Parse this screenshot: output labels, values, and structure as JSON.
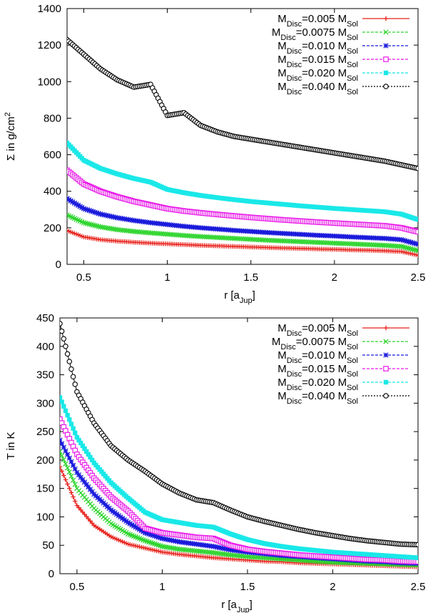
{
  "chart_data": [
    {
      "type": "line",
      "xlabel": "r [a",
      "xlabel_sub": "Jup",
      "xlabel_end": "]",
      "ylabel": "Σ in g/cm",
      "ylabel_sup": "2",
      "xlim": [
        0.4,
        2.5
      ],
      "ylim": [
        0,
        1400
      ],
      "x_ticks": [
        0.5,
        1,
        1.5,
        2,
        2.5
      ],
      "x_tick_labels": [
        "0.5",
        "1",
        "1.5",
        "2",
        "2.5"
      ],
      "y_ticks": [
        0,
        200,
        400,
        600,
        800,
        1000,
        1200,
        1400
      ],
      "y_tick_labels": [
        "0",
        "200",
        "400",
        "600",
        "800",
        "1000",
        "1200",
        "1400"
      ],
      "grid": false,
      "legend_position": "top-right",
      "x": [
        0.4,
        0.5,
        0.6,
        0.7,
        0.8,
        0.9,
        1.0,
        1.1,
        1.2,
        1.3,
        1.4,
        1.5,
        1.6,
        1.7,
        1.8,
        1.9,
        2.0,
        2.1,
        2.2,
        2.3,
        2.4,
        2.5
      ],
      "series": [
        {
          "name": "M_Disc=0.005 M_Sol",
          "label_main": "M",
          "label_sub1": "Disc",
          "label_mid": "=0.005 M",
          "label_sub2": "Sol",
          "color": "#e8201a",
          "marker": "plus",
          "values": [
            185,
            150,
            135,
            127,
            121,
            116,
            112,
            108,
            104,
            101,
            98,
            95,
            92,
            89,
            87,
            84,
            82,
            79,
            77,
            74,
            70,
            50
          ]
        },
        {
          "name": "M_Disc=0.0075 M_Sol",
          "label_main": "M",
          "label_sub1": "Disc",
          "label_mid": "=0.0075 M",
          "label_sub2": "Sol",
          "color": "#2ed52e",
          "marker": "cross",
          "values": [
            270,
            228,
            205,
            190,
            180,
            172,
            165,
            158,
            152,
            147,
            142,
            137,
            132,
            128,
            124,
            120,
            116,
            112,
            108,
            104,
            98,
            75
          ]
        },
        {
          "name": "M_Disc=0.010 M_Sol",
          "label_main": "M",
          "label_sub1": "Disc",
          "label_mid": "=0.010 M",
          "label_sub2": "Sol",
          "color": "#1a1adc",
          "marker": "star",
          "values": [
            360,
            305,
            275,
            255,
            240,
            228,
            218,
            208,
            200,
            193,
            186,
            180,
            174,
            169,
            164,
            159,
            155,
            150,
            146,
            142,
            135,
            110
          ]
        },
        {
          "name": "M_Disc=0.015 M_Sol",
          "label_main": "M",
          "label_sub1": "Disc",
          "label_mid": "=0.015 M",
          "label_sub2": "Sol",
          "color": "#e81ae8",
          "marker": "square",
          "values": [
            515,
            440,
            400,
            370,
            345,
            325,
            305,
            292,
            282,
            273,
            265,
            257,
            250,
            243,
            237,
            231,
            226,
            221,
            216,
            211,
            200,
            178
          ]
        },
        {
          "name": "M_Disc=0.020 M_Sol",
          "label_main": "M",
          "label_sub1": "Disc",
          "label_mid": "=0.020 M",
          "label_sub2": "Sol",
          "color": "#1ae8e8",
          "marker": "filled-square",
          "values": [
            665,
            570,
            525,
            495,
            470,
            450,
            410,
            392,
            377,
            365,
            354,
            344,
            336,
            328,
            320,
            313,
            306,
            300,
            294,
            288,
            275,
            245
          ]
        },
        {
          "name": "M_Disc=0.040 M_Sol",
          "label_main": "M",
          "label_sub1": "Disc",
          "label_mid": "=0.040 M",
          "label_sub2": "Sol",
          "color": "#000000",
          "marker": "circle",
          "values": [
            1230,
            1150,
            1070,
            1010,
            970,
            985,
            815,
            830,
            760,
            725,
            700,
            685,
            670,
            655,
            640,
            625,
            610,
            595,
            580,
            565,
            545,
            525
          ]
        }
      ]
    },
    {
      "type": "line",
      "xlabel": "r [a",
      "xlabel_sub": "Jup",
      "xlabel_end": "]",
      "ylabel": "T in K",
      "xlim": [
        0.4,
        2.5
      ],
      "ylim": [
        0,
        450
      ],
      "x_ticks": [
        0.5,
        1,
        1.5,
        2,
        2.5
      ],
      "x_tick_labels": [
        "0.5",
        "1",
        "1.5",
        "2",
        "2.5"
      ],
      "y_ticks": [
        0,
        50,
        100,
        150,
        200,
        250,
        300,
        350,
        400,
        450
      ],
      "y_tick_labels": [
        "0",
        "50",
        "100",
        "150",
        "200",
        "250",
        "300",
        "350",
        "400",
        "450"
      ],
      "grid": false,
      "legend_position": "top-right",
      "x": [
        0.4,
        0.5,
        0.6,
        0.7,
        0.8,
        0.9,
        1.0,
        1.1,
        1.2,
        1.3,
        1.4,
        1.5,
        1.6,
        1.7,
        1.8,
        1.9,
        2.0,
        2.1,
        2.2,
        2.3,
        2.4,
        2.5
      ],
      "series": [
        {
          "name": "M_Disc=0.005 M_Sol",
          "label_main": "M",
          "label_sub1": "Disc",
          "label_mid": "=0.005 M",
          "label_sub2": "Sol",
          "color": "#e8201a",
          "marker": "plus",
          "values": [
            188,
            120,
            85,
            65,
            52,
            45,
            38,
            34,
            31,
            28,
            26,
            24,
            22,
            21,
            19,
            18,
            17,
            16,
            15,
            14,
            13,
            12
          ]
        },
        {
          "name": "M_Disc=0.0075 M_Sol",
          "label_main": "M",
          "label_sub1": "Disc",
          "label_mid": "=0.0075 M",
          "label_sub2": "Sol",
          "color": "#2ed52e",
          "marker": "cross",
          "values": [
            215,
            150,
            115,
            88,
            70,
            58,
            48,
            43,
            40,
            37,
            33,
            30,
            28,
            26,
            24,
            22,
            20,
            19,
            18,
            17,
            16,
            15
          ]
        },
        {
          "name": "M_Disc=0.010 M_Sol",
          "label_main": "M",
          "label_sub1": "Disc",
          "label_mid": "=0.010 M",
          "label_sub2": "Sol",
          "color": "#1a1adc",
          "marker": "star",
          "values": [
            235,
            178,
            140,
            112,
            90,
            72,
            62,
            56,
            52,
            48,
            42,
            38,
            35,
            32,
            30,
            28,
            26,
            24,
            22,
            21,
            19,
            18
          ]
        },
        {
          "name": "M_Disc=0.015 M_Sol",
          "label_main": "M",
          "label_sub1": "Disc",
          "label_mid": "=0.015 M",
          "label_sub2": "Sol",
          "color": "#e81ae8",
          "marker": "square",
          "values": [
            272,
            210,
            168,
            135,
            110,
            80,
            72,
            68,
            64,
            62,
            50,
            43,
            39,
            36,
            33,
            31,
            29,
            27,
            25,
            24,
            22,
            21
          ]
        },
        {
          "name": "M_Disc=0.020 M_Sol",
          "label_main": "M",
          "label_sub1": "Disc",
          "label_mid": "=0.020 M",
          "label_sub2": "Sol",
          "color": "#1ae8e8",
          "marker": "filled-square",
          "values": [
            310,
            240,
            195,
            160,
            133,
            108,
            95,
            90,
            85,
            82,
            70,
            60,
            53,
            48,
            44,
            41,
            38,
            36,
            34,
            32,
            30,
            28
          ]
        },
        {
          "name": "M_Disc=0.040 M_Sol",
          "label_main": "M",
          "label_sub1": "Disc",
          "label_mid": "=0.040 M",
          "label_sub2": "Sol",
          "color": "#000000",
          "marker": "circle",
          "values": [
            440,
            320,
            265,
            225,
            200,
            180,
            158,
            142,
            130,
            125,
            112,
            100,
            92,
            85,
            78,
            72,
            67,
            62,
            58,
            55,
            52,
            51
          ]
        }
      ]
    }
  ]
}
